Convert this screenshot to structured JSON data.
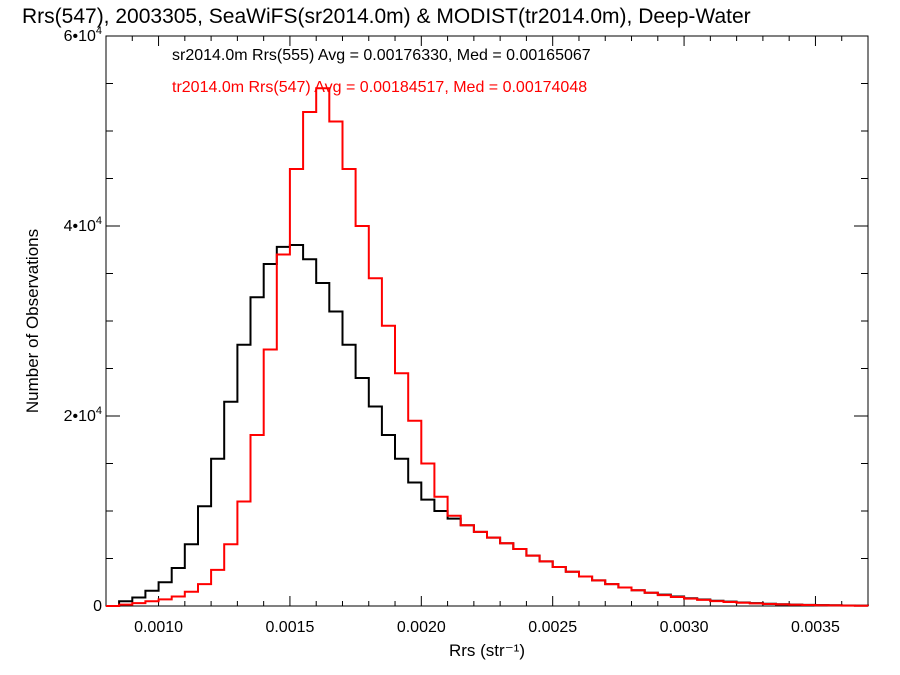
{
  "chart_data": {
    "type": "line",
    "title": "Rrs(547), 2003305, SeaWiFS(sr2014.0m) & MODIST(tr2014.0m), Deep-Water",
    "xlabel": "Rrs (str⁻¹)",
    "ylabel": "Number of Observations",
    "xlim": [
      0.0008,
      0.0037
    ],
    "ylim": [
      0,
      60000
    ],
    "grid": false,
    "legend_position": "top-left",
    "x_ticks": [
      {
        "value": 0.001,
        "label": "0.0010"
      },
      {
        "value": 0.0015,
        "label": "0.0015"
      },
      {
        "value": 0.002,
        "label": "0.0020"
      },
      {
        "value": 0.0025,
        "label": "0.0025"
      },
      {
        "value": 0.003,
        "label": "0.0030"
      },
      {
        "value": 0.0035,
        "label": "0.0035"
      }
    ],
    "y_ticks": [
      {
        "value": 0,
        "mantissa": "0",
        "exponent": ""
      },
      {
        "value": 20000,
        "mantissa": "2•10",
        "exponent": "4"
      },
      {
        "value": 40000,
        "mantissa": "4•10",
        "exponent": "4"
      },
      {
        "value": 60000,
        "mantissa": "6•10",
        "exponent": "4"
      }
    ],
    "series": [
      {
        "name": "sr2014.0m Rrs(555) Avg = 0.00176330, Med = 0.00165067",
        "color": "#000000",
        "x": [
          0.0008,
          0.00085,
          0.0009,
          0.00095,
          0.001,
          0.00105,
          0.0011,
          0.00115,
          0.0012,
          0.00125,
          0.0013,
          0.00135,
          0.0014,
          0.00145,
          0.0015,
          0.00155,
          0.0016,
          0.00165,
          0.0017,
          0.00175,
          0.0018,
          0.00185,
          0.0019,
          0.00195,
          0.002,
          0.00205,
          0.0021,
          0.00215,
          0.0022,
          0.00225,
          0.0023,
          0.00235,
          0.0024,
          0.00245,
          0.0025,
          0.00255,
          0.0026,
          0.00265,
          0.0027,
          0.00275,
          0.0028,
          0.00285,
          0.0029,
          0.00295,
          0.003,
          0.00305,
          0.0031,
          0.00315,
          0.0032,
          0.00325,
          0.0033,
          0.00335,
          0.0034,
          0.00345,
          0.0035,
          0.00355,
          0.0036,
          0.00365,
          0.0037
        ],
        "values": [
          0,
          500,
          900,
          1600,
          2500,
          4000,
          6500,
          10500,
          15500,
          21500,
          27500,
          32500,
          36000,
          37800,
          38000,
          36500,
          34000,
          31000,
          27500,
          24000,
          21000,
          18000,
          15500,
          13000,
          11200,
          10000,
          9200,
          8500,
          7800,
          7200,
          6600,
          6000,
          5300,
          4700,
          4100,
          3600,
          3100,
          2700,
          2300,
          1950,
          1650,
          1400,
          1200,
          1000,
          820,
          680,
          560,
          460,
          370,
          300,
          240,
          190,
          150,
          120,
          90,
          70,
          55,
          40,
          30
        ]
      },
      {
        "name": "tr2014.0m Rrs(547) Avg = 0.00184517, Med = 0.00174048",
        "color": "#ff0000",
        "x": [
          0.0008,
          0.00085,
          0.0009,
          0.00095,
          0.001,
          0.00105,
          0.0011,
          0.00115,
          0.0012,
          0.00125,
          0.0013,
          0.00135,
          0.0014,
          0.00145,
          0.0015,
          0.00155,
          0.0016,
          0.00165,
          0.0017,
          0.00175,
          0.0018,
          0.00185,
          0.0019,
          0.00195,
          0.002,
          0.00205,
          0.0021,
          0.00215,
          0.0022,
          0.00225,
          0.0023,
          0.00235,
          0.0024,
          0.00245,
          0.0025,
          0.00255,
          0.0026,
          0.00265,
          0.0027,
          0.00275,
          0.0028,
          0.00285,
          0.0029,
          0.00295,
          0.003,
          0.00305,
          0.0031,
          0.00315,
          0.0032,
          0.00325,
          0.0033,
          0.00335,
          0.0034,
          0.00345,
          0.0035,
          0.00355,
          0.0036,
          0.00365,
          0.0037
        ],
        "values": [
          0,
          150,
          300,
          500,
          700,
          1000,
          1500,
          2300,
          3800,
          6500,
          11000,
          18000,
          27000,
          37000,
          46000,
          52000,
          54500,
          51000,
          46000,
          40000,
          34500,
          29500,
          24500,
          19500,
          15000,
          11500,
          9500,
          8500,
          7800,
          7200,
          6600,
          6000,
          5300,
          4700,
          4100,
          3600,
          3100,
          2700,
          2300,
          1950,
          1650,
          1400,
          1150,
          950,
          780,
          640,
          520,
          420,
          340,
          270,
          210,
          170,
          130,
          100,
          80,
          60,
          45,
          35,
          25
        ]
      }
    ]
  }
}
